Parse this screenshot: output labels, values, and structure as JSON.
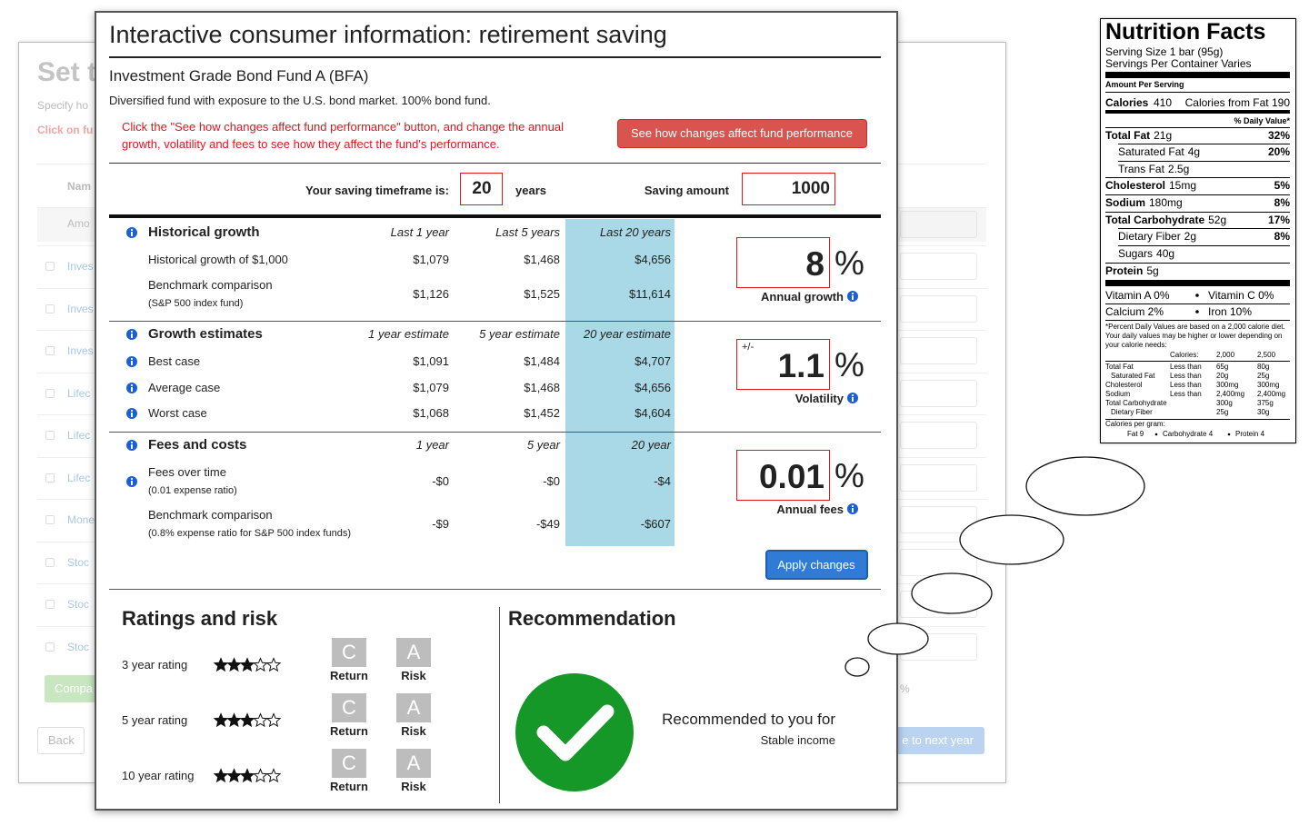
{
  "background": {
    "title": "Set t",
    "subtitle": "Specify ho",
    "instruction": "Click on fu",
    "table_header": "Nam",
    "filter_row": "Amo",
    "rows": [
      "Inves",
      "Inves",
      "Inves",
      "Lifec",
      "Lifec",
      "Lifec",
      "Mone",
      "Stoc",
      "Stoc",
      "Stoc"
    ],
    "compare_button": "Compa",
    "back_button": "Back",
    "percent": "%",
    "next_button": "e to next year"
  },
  "modal": {
    "title": "Interactive consumer information: retirement saving",
    "fund_name": "Investment Grade Bond Fund A (BFA)",
    "description": "Diversified fund with exposure to the U.S. bond market. 100% bond fund.",
    "instruction": "Click the \"See how changes affect fund performance\" button, and change the annual growth, volatility and fees to see how they affect the fund's performance.",
    "performance_button": "See how changes affect fund performance",
    "timeframe": {
      "label": "Your saving timeframe is:",
      "value": "20",
      "unit": "years"
    },
    "saving": {
      "label": "Saving amount",
      "value": "1000"
    },
    "sections": [
      {
        "title": "Historical growth",
        "columns": [
          "Last 1 year",
          "Last 5 years",
          "Last 20 years"
        ],
        "rows": [
          {
            "label": "Historical growth of $1,000",
            "values": [
              "$1,079",
              "$1,468",
              "$4,656"
            ],
            "info": false
          },
          {
            "label": "Benchmark comparison",
            "note": "(S&P 500 index fund)",
            "values": [
              "$1,126",
              "$1,525",
              "$11,614"
            ],
            "info": false
          }
        ]
      },
      {
        "title": "Growth estimates",
        "columns": [
          "1 year estimate",
          "5 year estimate",
          "20 year estimate"
        ],
        "rows": [
          {
            "label": "Best case",
            "values": [
              "$1,091",
              "$1,484",
              "$4,707"
            ],
            "info": true
          },
          {
            "label": "Average case",
            "values": [
              "$1,079",
              "$1,468",
              "$4,656"
            ],
            "info": true
          },
          {
            "label": "Worst case",
            "values": [
              "$1,068",
              "$1,452",
              "$4,604"
            ],
            "info": true
          }
        ]
      },
      {
        "title": "Fees and costs",
        "columns": [
          "1 year",
          "5 year",
          "20 year"
        ],
        "rows": [
          {
            "label": "Fees over time",
            "note": "(0.01 expense ratio)",
            "values": [
              "-$0",
              "-$0",
              "-$4"
            ],
            "info": true
          },
          {
            "label": "Benchmark comparison",
            "note": "(0.8% expense ratio for S&P 500 index funds)",
            "values": [
              "-$9",
              "-$49",
              "-$607"
            ],
            "info": false
          }
        ]
      }
    ],
    "controls": [
      {
        "value": "8",
        "unit": "%",
        "label": "Annual growth"
      },
      {
        "prefix": "+/-",
        "value": "1.1",
        "unit": "%",
        "label": "Volatility"
      },
      {
        "value": "0.01",
        "unit": "%",
        "label": "Annual fees"
      }
    ],
    "apply_button": "Apply changes",
    "ratings": {
      "title": "Ratings and risk",
      "max_stars": 5,
      "rows": [
        {
          "label": "3 year rating",
          "stars": 3,
          "return_grade": "C",
          "return_label": "Return",
          "risk_grade": "A",
          "risk_label": "Risk"
        },
        {
          "label": "5 year rating",
          "stars": 3,
          "return_grade": "C",
          "return_label": "Return",
          "risk_grade": "A",
          "risk_label": "Risk"
        },
        {
          "label": "10 year rating",
          "stars": 3,
          "return_grade": "C",
          "return_label": "Return",
          "risk_grade": "A",
          "risk_label": "Risk"
        }
      ]
    },
    "recommendation": {
      "title": "Recommendation",
      "text": "Recommended to you for",
      "reason": "Stable income"
    }
  },
  "nutrition": {
    "title": "Nutrition Facts",
    "serving_size": "Serving Size 1 bar (95g)",
    "servings": "Servings Per Container Varies",
    "amount_per_serving": "Amount Per Serving",
    "calories_label": "Calories",
    "calories": "410",
    "calories_fat": "Calories from Fat 190",
    "daily_value_header": "% Daily Value*",
    "nutrients": [
      {
        "name": "Total Fat",
        "amount": "21g",
        "dv": "32%",
        "bold": true,
        "indent": false
      },
      {
        "name": "Saturated Fat",
        "amount": "4g",
        "dv": "20%",
        "bold": false,
        "indent": true
      },
      {
        "name": "Trans Fat",
        "amount": "2.5g",
        "bold": false,
        "indent": true
      },
      {
        "name": "Cholesterol",
        "amount": "15mg",
        "dv": "5%",
        "bold": true,
        "indent": false
      },
      {
        "name": "Sodium",
        "amount": "180mg",
        "dv": "8%",
        "bold": true,
        "indent": false
      },
      {
        "name": "Total Carbohydrate",
        "amount": "52g",
        "dv": "17%",
        "bold": true,
        "indent": false
      },
      {
        "name": "Dietary Fiber",
        "amount": "2g",
        "dv": "8%",
        "bold": false,
        "indent": true
      },
      {
        "name": "Sugars",
        "amount": "40g",
        "bold": false,
        "indent": true
      },
      {
        "name": "Protein",
        "amount": "5g",
        "bold": true,
        "indent": false
      }
    ],
    "vitamins": [
      [
        "Vitamin A 0%",
        "Vitamin C 0%"
      ],
      [
        "Calcium 2%",
        "Iron 10%"
      ]
    ],
    "footnote": "*Percent Daily Values are based on a 2,000 calorie diet. Your daily values may be higher or lower depending on your calorie needs:",
    "reference": {
      "header": [
        "Calories:",
        "2,000",
        "2,500"
      ],
      "rows": [
        {
          "name": "Total Fat",
          "limit": "Less than",
          "v2000": "65g",
          "v2500": "80g",
          "indent": false
        },
        {
          "name": "Saturated Fat",
          "limit": "Less than",
          "v2000": "20g",
          "v2500": "25g",
          "indent": true
        },
        {
          "name": "Cholesterol",
          "limit": "Less than",
          "v2000": "300mg",
          "v2500": "300mg",
          "indent": false
        },
        {
          "name": "Sodium",
          "limit": "Less than",
          "v2000": "2,400mg",
          "v2500": "2,400mg",
          "indent": false
        },
        {
          "name": "Total Carbohydrate",
          "v2000": "300g",
          "v2500": "375g",
          "indent": false
        },
        {
          "name": "Dietary Fiber",
          "v2000": "25g",
          "v2500": "30g",
          "indent": true
        }
      ]
    },
    "calories_per_gram": "Calories per gram:",
    "per_gram": [
      "Fat 9",
      "Carbohydrate 4",
      "Protein 4"
    ]
  }
}
